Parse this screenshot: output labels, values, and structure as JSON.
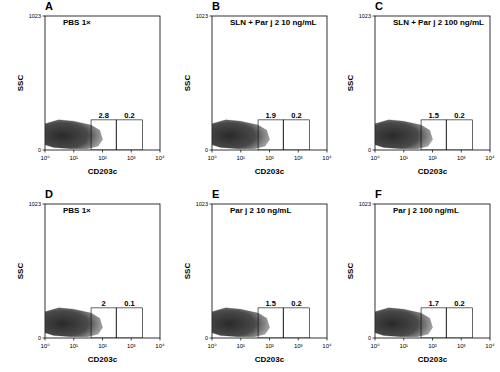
{
  "chart_data": [
    {
      "type": "density",
      "panel_label": "A",
      "title": "PBS 1×",
      "xlabel": "CD203c",
      "ylabel": "SSC",
      "log": "x",
      "data_labels": true,
      "color": "#2a2a2a",
      "xlim": [
        1,
        10000
      ],
      "xticks": [
        {
          "value": 1,
          "label": "10⁰"
        },
        {
          "value": 10,
          "label": "10¹"
        },
        {
          "value": 100,
          "label": "10²"
        },
        {
          "value": 1000,
          "label": "10³"
        },
        {
          "value": 10000,
          "label": "10⁴"
        }
      ],
      "ylim": [
        0,
        1023
      ],
      "yticks": [
        0,
        1023
      ],
      "population": {
        "x": [
          1,
          3,
          10,
          40,
          80,
          100,
          70,
          30,
          8,
          2,
          1
        ],
        "y": [
          200,
          230,
          220,
          190,
          150,
          80,
          30,
          10,
          10,
          20,
          40
        ]
      },
      "gates": [
        {
          "x": [
            40,
            300
          ],
          "y": [
            0,
            230
          ],
          "value": 2.8
        },
        {
          "x": [
            300,
            2500
          ],
          "y": [
            0,
            230
          ],
          "value": 0.2
        }
      ]
    },
    {
      "type": "density",
      "panel_label": "B",
      "title": "SLN + Par j 2 10 ng/mL",
      "xlabel": "CD203c",
      "ylabel": "SSC",
      "log": "x",
      "data_labels": true,
      "color": "#2a2a2a",
      "xlim": [
        1,
        10000
      ],
      "xticks": [
        {
          "value": 1,
          "label": "10⁰"
        },
        {
          "value": 10,
          "label": "10¹"
        },
        {
          "value": 100,
          "label": "10²"
        },
        {
          "value": 1000,
          "label": "10³"
        },
        {
          "value": 10000,
          "label": "10⁴"
        }
      ],
      "ylim": [
        0,
        1023
      ],
      "yticks": [
        0,
        1023
      ],
      "population": {
        "x": [
          1,
          3,
          10,
          40,
          80,
          100,
          70,
          30,
          8,
          2,
          1
        ],
        "y": [
          200,
          230,
          220,
          190,
          150,
          80,
          30,
          10,
          10,
          20,
          40
        ]
      },
      "gates": [
        {
          "x": [
            40,
            300
          ],
          "y": [
            0,
            230
          ],
          "value": 1.9
        },
        {
          "x": [
            300,
            2500
          ],
          "y": [
            0,
            230
          ],
          "value": 0.2
        }
      ]
    },
    {
      "type": "density",
      "panel_label": "C",
      "title": "SLN + Par j 2 100 ng/mL",
      "xlabel": "CD203c",
      "ylabel": "SSC",
      "log": "x",
      "data_labels": true,
      "color": "#2a2a2a",
      "xlim": [
        1,
        10000
      ],
      "xticks": [
        {
          "value": 1,
          "label": "10⁰"
        },
        {
          "value": 10,
          "label": "10¹"
        },
        {
          "value": 100,
          "label": "10²"
        },
        {
          "value": 1000,
          "label": "10³"
        },
        {
          "value": 10000,
          "label": "10⁴"
        }
      ],
      "ylim": [
        0,
        1023
      ],
      "yticks": [
        0,
        1023
      ],
      "population": {
        "x": [
          1,
          3,
          10,
          40,
          80,
          100,
          70,
          30,
          8,
          2,
          1
        ],
        "y": [
          200,
          230,
          220,
          190,
          150,
          80,
          30,
          10,
          10,
          20,
          40
        ]
      },
      "gates": [
        {
          "x": [
            40,
            300
          ],
          "y": [
            0,
            230
          ],
          "value": 1.5
        },
        {
          "x": [
            300,
            2500
          ],
          "y": [
            0,
            230
          ],
          "value": 0.2
        }
      ]
    },
    {
      "type": "density",
      "panel_label": "D",
      "title": "PBS 1×",
      "xlabel": "CD203c",
      "ylabel": "SSC",
      "log": "x",
      "data_labels": true,
      "color": "#2a2a2a",
      "xlim": [
        1,
        10000
      ],
      "xticks": [
        {
          "value": 1,
          "label": "10⁰"
        },
        {
          "value": 10,
          "label": "10¹"
        },
        {
          "value": 100,
          "label": "10²"
        },
        {
          "value": 1000,
          "label": "10³"
        },
        {
          "value": 10000,
          "label": "10⁴"
        }
      ],
      "ylim": [
        0,
        1023
      ],
      "yticks": [
        0,
        1023
      ],
      "population": {
        "x": [
          1,
          3,
          10,
          40,
          80,
          100,
          70,
          30,
          8,
          2,
          1
        ],
        "y": [
          200,
          230,
          220,
          190,
          150,
          80,
          30,
          10,
          10,
          20,
          40
        ]
      },
      "gates": [
        {
          "x": [
            40,
            300
          ],
          "y": [
            0,
            230
          ],
          "value": 2
        },
        {
          "x": [
            300,
            2500
          ],
          "y": [
            0,
            230
          ],
          "value": 0.1
        }
      ]
    },
    {
      "type": "density",
      "panel_label": "E",
      "title": "Par j 2 10 ng/mL",
      "xlabel": "CD203c",
      "ylabel": "SSC",
      "log": "x",
      "data_labels": true,
      "color": "#2a2a2a",
      "xlim": [
        1,
        10000
      ],
      "xticks": [
        {
          "value": 1,
          "label": "10⁰"
        },
        {
          "value": 10,
          "label": "10¹"
        },
        {
          "value": 100,
          "label": "10²"
        },
        {
          "value": 1000,
          "label": "10³"
        },
        {
          "value": 10000,
          "label": "10⁴"
        }
      ],
      "ylim": [
        0,
        1023
      ],
      "yticks": [
        0,
        1023
      ],
      "population": {
        "x": [
          1,
          3,
          10,
          40,
          80,
          100,
          70,
          30,
          8,
          2,
          1
        ],
        "y": [
          200,
          230,
          220,
          190,
          150,
          80,
          30,
          10,
          10,
          20,
          40
        ]
      },
      "gates": [
        {
          "x": [
            40,
            300
          ],
          "y": [
            0,
            230
          ],
          "value": 1.5
        },
        {
          "x": [
            300,
            2500
          ],
          "y": [
            0,
            230
          ],
          "value": 0.2
        }
      ]
    },
    {
      "type": "density",
      "panel_label": "F",
      "title": "Par j 2 100 ng/mL",
      "xlabel": "CD203c",
      "ylabel": "SSC",
      "log": "x",
      "data_labels": true,
      "color": "#2a2a2a",
      "xlim": [
        1,
        10000
      ],
      "xticks": [
        {
          "value": 1,
          "label": "10⁰"
        },
        {
          "value": 10,
          "label": "10¹"
        },
        {
          "value": 100,
          "label": "10²"
        },
        {
          "value": 1000,
          "label": "10³"
        },
        {
          "value": 10000,
          "label": "10⁴"
        }
      ],
      "ylim": [
        0,
        1023
      ],
      "yticks": [
        0,
        1023
      ],
      "population": {
        "x": [
          1,
          3,
          10,
          40,
          80,
          100,
          70,
          30,
          8,
          2,
          1
        ],
        "y": [
          200,
          230,
          220,
          190,
          150,
          80,
          30,
          10,
          10,
          20,
          40
        ]
      },
      "gates": [
        {
          "x": [
            40,
            300
          ],
          "y": [
            0,
            230
          ],
          "value": 1.7
        },
        {
          "x": [
            300,
            2500
          ],
          "y": [
            0,
            230
          ],
          "value": 0.2
        }
      ]
    }
  ]
}
